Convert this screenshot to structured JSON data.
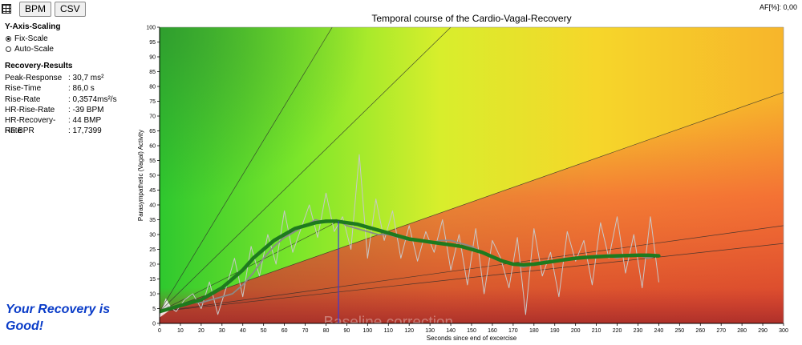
{
  "toolbar": {
    "bpm_label": "BPM",
    "csv_label": "CSV",
    "af_readout": "AF[%]: 0,00"
  },
  "scaling": {
    "title": "Y-Axis-Scaling",
    "options": [
      {
        "label": "Fix-Scale",
        "checked": true
      },
      {
        "label": "Auto-Scale",
        "checked": false
      }
    ]
  },
  "results": {
    "title": "Recovery-Results",
    "rows": [
      {
        "label": "Peak-Response",
        "value": ": 30,7 ms²"
      },
      {
        "label": "Rise-Time",
        "value": ": 86,0 s"
      },
      {
        "label": "Rise-Rate",
        "value": ": 0,3574ms²/s"
      },
      {
        "label": "HR-Rise-Rate",
        "value": ": -39 BPM"
      },
      {
        "label": "HR-Recovery-Rate",
        "value": ": 44 BMP"
      },
      {
        "label": "HF BPR",
        "value": ": 17,7399"
      }
    ]
  },
  "verdict": {
    "line1": "Your Recovery is",
    "line2": "Good!"
  },
  "chart_data": {
    "type": "line",
    "title": "Temporal course of the Cardio-Vagal-Recovery",
    "xlabel": "Seconds since end of excercise",
    "ylabel": "Parasympathetic (Vagal) Activity",
    "xlim": [
      0,
      300
    ],
    "ylim": [
      0,
      100
    ],
    "x_tick_step": 10,
    "y_tick_step": 5,
    "grid": false,
    "watermark": "Baseline correction",
    "peak_marker_x": 86,
    "reference_lines": [
      {
        "x0": 0,
        "y0": 4,
        "x1": 83,
        "y1": 100
      },
      {
        "x0": 0,
        "y0": 4,
        "x1": 140,
        "y1": 100
      },
      {
        "x0": 0,
        "y0": 4,
        "x1": 300,
        "y1": 78
      },
      {
        "x0": 0,
        "y0": 4,
        "x1": 300,
        "y1": 33
      },
      {
        "x0": 0,
        "y0": 4,
        "x1": 300,
        "y1": 27
      },
      {
        "x0": 0,
        "y0": 4,
        "x1": 86,
        "y1": 34.5
      }
    ],
    "series": [
      {
        "color": "#c8c8c8",
        "x": [
          0,
          4,
          8,
          12,
          16,
          20,
          24,
          28,
          32,
          36,
          40,
          44,
          48,
          52,
          56,
          60,
          64,
          68,
          72,
          76,
          80,
          84,
          88,
          92,
          96,
          100,
          104,
          108,
          112,
          116,
          120,
          124,
          128,
          132,
          136,
          140,
          144,
          148,
          152,
          156,
          160,
          164,
          168,
          172,
          176,
          180,
          184,
          188,
          192,
          196,
          200,
          204,
          208,
          212,
          216,
          220,
          224,
          228,
          232,
          236,
          240
        ],
        "values": [
          3,
          6,
          4,
          8,
          10,
          5,
          14,
          3,
          12,
          22,
          9,
          26,
          16,
          30,
          20,
          38,
          24,
          32,
          40,
          29,
          44,
          31,
          36,
          25,
          57,
          22,
          42,
          28,
          38,
          22,
          33,
          21,
          31,
          24,
          35,
          18,
          30,
          13,
          32,
          10,
          28,
          22,
          12,
          29,
          3,
          32,
          16,
          24,
          9,
          31,
          21,
          28,
          13,
          34,
          22,
          36,
          17,
          30,
          12,
          36,
          14
        ]
      },
      {
        "color": "#8a8a8a",
        "x": [
          0,
          5,
          10,
          15,
          20,
          25,
          30,
          35,
          40,
          45,
          50,
          55,
          60,
          65,
          70,
          75,
          80,
          85,
          90,
          95,
          100,
          105,
          110,
          115,
          120,
          125,
          130,
          135,
          140,
          145,
          150,
          155,
          160,
          165,
          170,
          175,
          180,
          185,
          190,
          195,
          200,
          205,
          210,
          215,
          220,
          225,
          230,
          235,
          240
        ],
        "values": [
          4,
          5,
          6,
          7,
          7,
          8,
          9,
          10,
          13,
          17,
          22,
          26,
          29,
          31,
          33,
          35,
          34,
          35,
          33,
          32,
          31,
          30,
          30,
          29,
          28,
          28,
          27,
          28,
          28,
          27,
          26,
          24,
          22,
          21,
          20,
          19,
          20,
          21,
          21,
          22,
          22,
          22,
          23,
          23,
          22,
          23,
          23,
          22,
          23
        ]
      },
      {
        "color": "#1e7a1e",
        "x": [
          0,
          5,
          10,
          15,
          20,
          25,
          30,
          35,
          40,
          45,
          50,
          55,
          60,
          65,
          70,
          75,
          80,
          85,
          90,
          95,
          100,
          105,
          110,
          115,
          120,
          125,
          130,
          135,
          140,
          145,
          150,
          155,
          160,
          165,
          170,
          175,
          180,
          185,
          190,
          195,
          200,
          205,
          210,
          215,
          220,
          225,
          230,
          235,
          240
        ],
        "values": [
          4,
          5,
          6,
          7,
          8,
          10,
          12,
          15,
          18,
          22,
          25,
          28,
          30,
          32,
          33,
          34,
          34.5,
          34.5,
          34,
          33.5,
          32.5,
          31.5,
          30.5,
          29.5,
          28.5,
          28,
          27.5,
          27,
          26.5,
          26,
          25,
          24,
          22.5,
          21,
          20,
          19.8,
          20,
          20.5,
          21,
          21.5,
          22,
          22.3,
          22.5,
          22.7,
          22.8,
          22.9,
          23,
          23,
          22.8
        ]
      }
    ]
  }
}
